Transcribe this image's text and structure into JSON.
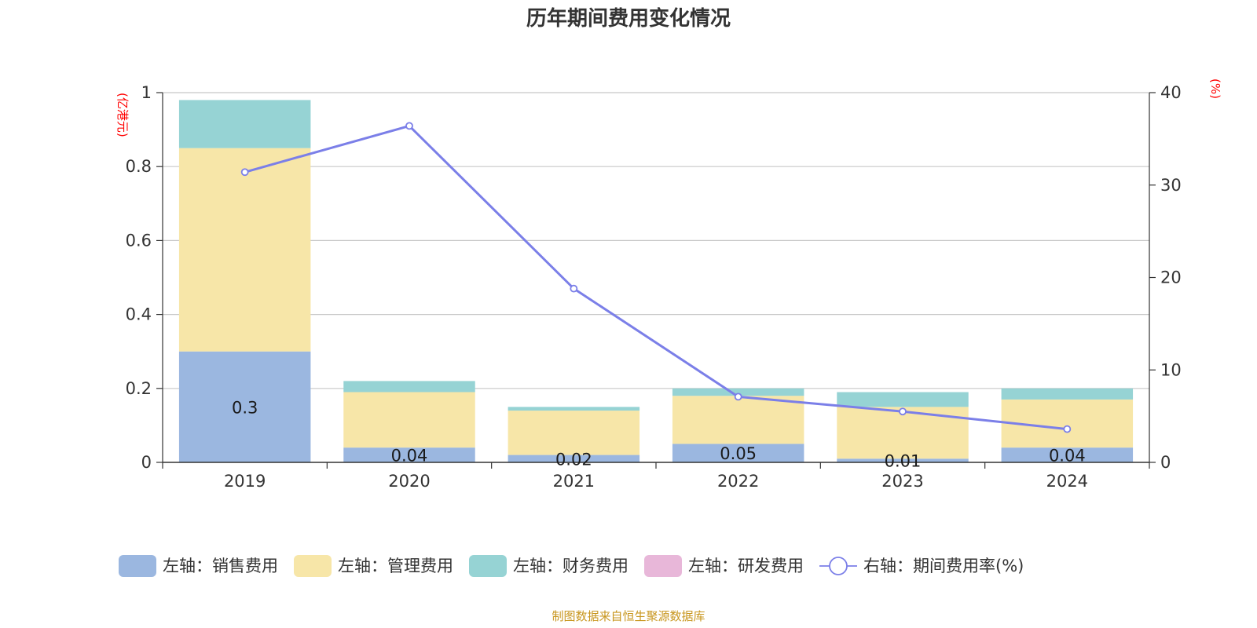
{
  "title": "历年期间费用变化情况",
  "source": "制图数据来自恒生聚源数据库",
  "chart_data": {
    "type": "bar",
    "stacked": true,
    "categories": [
      "2019",
      "2020",
      "2021",
      "2022",
      "2023",
      "2024"
    ],
    "left_axis": {
      "unit": "(亿港元)",
      "ylim": [
        0,
        1
      ],
      "ticks": [
        "0",
        "0.2",
        "0.4",
        "0.6",
        "0.8",
        "1"
      ]
    },
    "right_axis": {
      "unit": "(%)",
      "ylim": [
        0,
        40
      ],
      "ticks": [
        "0",
        "10",
        "20",
        "30",
        "40"
      ]
    },
    "series": [
      {
        "name": "左轴：销售费用",
        "type": "bar",
        "axis": "left",
        "color": "#9bb7e0",
        "values": [
          0.3,
          0.04,
          0.02,
          0.05,
          0.01,
          0.04
        ],
        "labels": [
          "0.3",
          "0.04",
          "0.02",
          "0.05",
          "0.01",
          "0.04"
        ]
      },
      {
        "name": "左轴：管理费用",
        "type": "bar",
        "axis": "left",
        "color": "#f7e6a8",
        "values": [
          0.55,
          0.15,
          0.12,
          0.13,
          0.14,
          0.13
        ]
      },
      {
        "name": "左轴：财务费用",
        "type": "bar",
        "axis": "left",
        "color": "#96d3d4",
        "values": [
          0.13,
          0.03,
          0.01,
          0.02,
          0.04,
          0.03
        ]
      },
      {
        "name": "左轴：研发费用",
        "type": "bar",
        "axis": "left",
        "color": "#e8b7d9",
        "values": [
          0,
          0,
          0,
          0,
          0,
          0
        ]
      },
      {
        "name": "右轴：期间费用率(%)",
        "type": "line",
        "axis": "right",
        "color": "#7b7fe8",
        "values": [
          31.4,
          36.4,
          18.8,
          7.1,
          5.5,
          3.6
        ]
      }
    ],
    "grid": true,
    "legend_position": "bottom"
  }
}
